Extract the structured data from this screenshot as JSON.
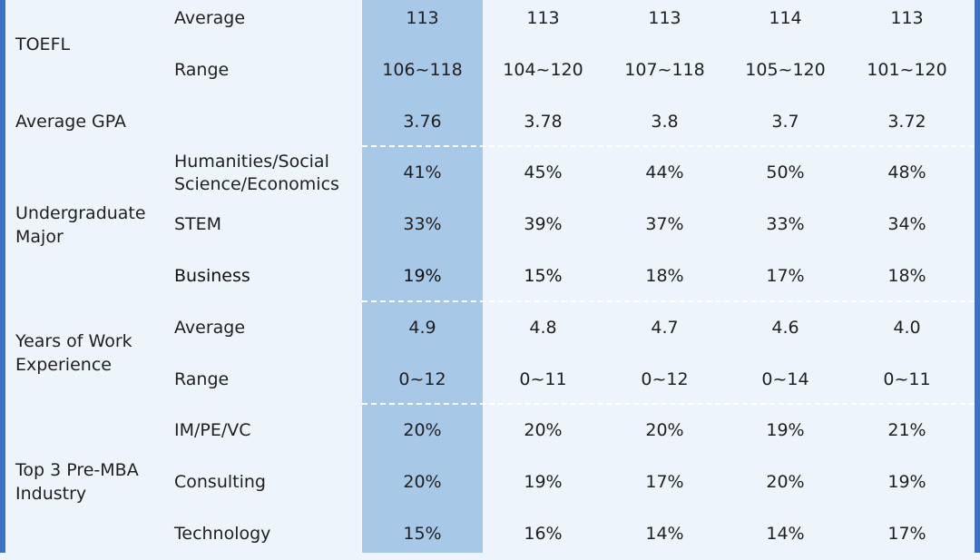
{
  "table": {
    "rows": [
      {
        "category": "TOEFL",
        "sub": "Average",
        "values": [
          "113",
          "113",
          "113",
          "114",
          "113"
        ]
      },
      {
        "category": "",
        "sub": "Range",
        "values": [
          "106~118",
          "104~120",
          "107~118",
          "105~120",
          "101~120"
        ]
      },
      {
        "category": "Average GPA",
        "sub": "",
        "values": [
          "3.76",
          "3.78",
          "3.8",
          "3.7",
          "3.72"
        ]
      },
      {
        "category": "",
        "sub": "Humanities/Social Science/Economics",
        "values": [
          "41%",
          "45%",
          "44%",
          "50%",
          "48%"
        ]
      },
      {
        "category": "",
        "sub": "STEM",
        "values": [
          "33%",
          "39%",
          "37%",
          "33%",
          "34%"
        ]
      },
      {
        "category": "",
        "sub": "Business",
        "values": [
          "19%",
          "15%",
          "18%",
          "17%",
          "18%"
        ]
      },
      {
        "category": "",
        "sub": "Average",
        "values": [
          "4.9",
          "4.8",
          "4.7",
          "4.6",
          "4.0"
        ]
      },
      {
        "category": "",
        "sub": "Range",
        "values": [
          "0~12",
          "0~11",
          "0~12",
          "0~14",
          "0~11"
        ]
      },
      {
        "category": "",
        "sub": "IM/PE/VC",
        "values": [
          "20%",
          "20%",
          "20%",
          "19%",
          "21%"
        ]
      },
      {
        "category": "",
        "sub": "Consulting",
        "values": [
          "20%",
          "19%",
          "17%",
          "20%",
          "19%"
        ]
      },
      {
        "category": "",
        "sub": "Technology",
        "values": [
          "15%",
          "16%",
          "14%",
          "14%",
          "17%"
        ]
      }
    ],
    "groups": {
      "undergraduate_major": "Undergraduate Major",
      "work_experience": "Years of Work Experience",
      "industry": "Top 3 Pre-MBA Industry"
    }
  }
}
